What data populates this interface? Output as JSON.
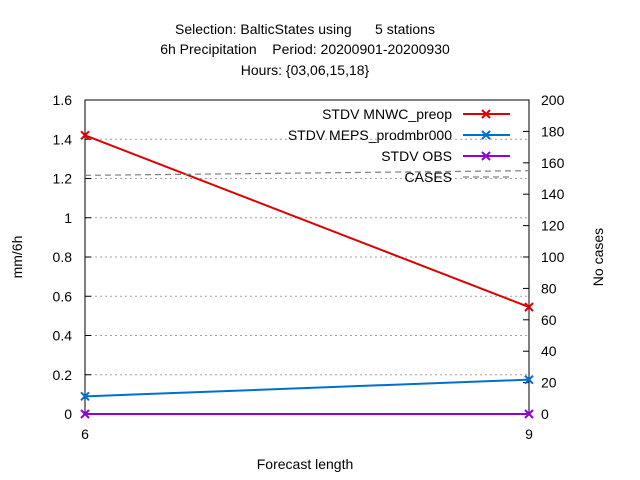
{
  "chart_data": {
    "type": "line",
    "title_lines": [
      "Selection: BalticStates using      5 stations",
      "6h Precipitation    Period: 20200901-20200930",
      "Hours: {03,06,15,18}"
    ],
    "xlabel": "Forecast length",
    "ylabel": "mm/6h",
    "y2label": "No cases",
    "x_ticks": [
      6,
      9
    ],
    "xlim": [
      6,
      9
    ],
    "ylim": [
      0,
      1.6
    ],
    "y_ticks": [
      0,
      0.2,
      0.4,
      0.6,
      0.8,
      1,
      1.2,
      1.4,
      1.6
    ],
    "y2lim": [
      0,
      200
    ],
    "y2_ticks": [
      0,
      20,
      40,
      60,
      80,
      100,
      120,
      140,
      160,
      180,
      200
    ],
    "grid": true,
    "legend_position": "top-right",
    "series": [
      {
        "name": "STDV MNWC_preop",
        "axis": "y",
        "color": "#dd0000",
        "marker": "x",
        "dash": false,
        "x": [
          6,
          9
        ],
        "values": [
          1.42,
          0.545
        ]
      },
      {
        "name": "STDV MEPS_prodmbr000",
        "axis": "y",
        "color": "#0070d0",
        "marker": "x",
        "dash": false,
        "x": [
          6,
          9
        ],
        "values": [
          0.09,
          0.175
        ]
      },
      {
        "name": "STDV OBS",
        "axis": "y",
        "color": "#9400d3",
        "marker": "x",
        "dash": false,
        "x": [
          6,
          9
        ],
        "values": [
          0,
          0
        ]
      },
      {
        "name": "CASES",
        "axis": "y2",
        "color": "#808080",
        "marker": "none",
        "dash": true,
        "x": [
          6,
          9
        ],
        "values": [
          152,
          155
        ]
      }
    ]
  }
}
